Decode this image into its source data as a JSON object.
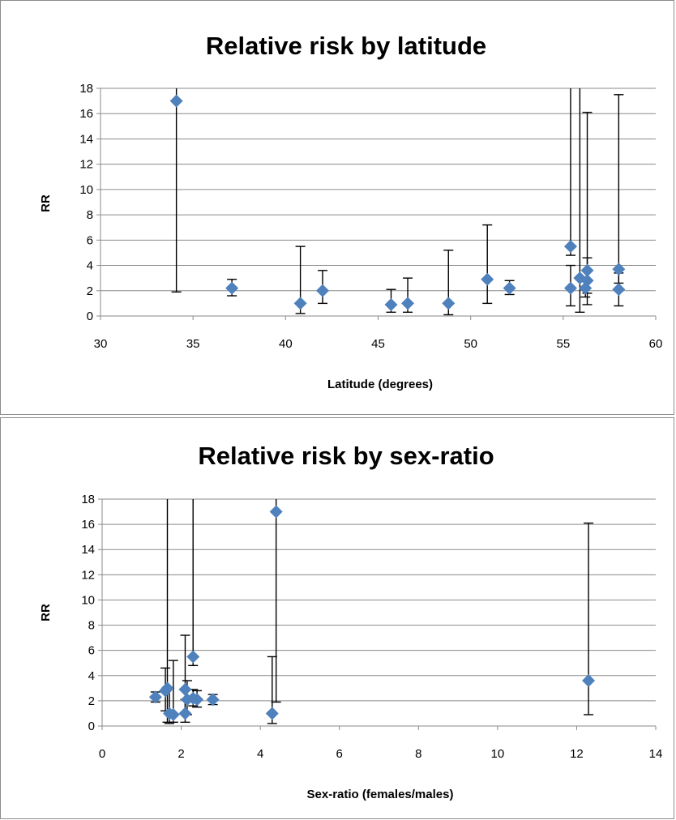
{
  "chart_data": [
    {
      "type": "scatter",
      "title": "Relative risk by latitude",
      "xlabel": "Latitude (degrees)",
      "ylabel": "RR",
      "xlim": [
        30,
        60
      ],
      "ylim": [
        0,
        18
      ],
      "xticks": [
        30,
        35,
        40,
        45,
        50,
        55,
        60
      ],
      "yticks": [
        0,
        2,
        4,
        6,
        8,
        10,
        12,
        14,
        16,
        18
      ],
      "grid": "horizontal",
      "marker_color": "#4f81bd",
      "points": [
        {
          "x": 34.1,
          "y": 17.0,
          "lo": 1.9,
          "hi": 18.0
        },
        {
          "x": 37.1,
          "y": 2.2,
          "lo": 1.6,
          "hi": 2.9
        },
        {
          "x": 40.8,
          "y": 1.0,
          "lo": 0.2,
          "hi": 5.5
        },
        {
          "x": 42.0,
          "y": 2.0,
          "lo": 1.0,
          "hi": 3.6
        },
        {
          "x": 45.7,
          "y": 0.9,
          "lo": 0.3,
          "hi": 2.1
        },
        {
          "x": 46.6,
          "y": 1.0,
          "lo": 0.3,
          "hi": 3.0
        },
        {
          "x": 48.8,
          "y": 1.0,
          "lo": 0.1,
          "hi": 5.2
        },
        {
          "x": 50.9,
          "y": 2.9,
          "lo": 1.0,
          "hi": 7.2
        },
        {
          "x": 52.1,
          "y": 2.2,
          "lo": 1.7,
          "hi": 2.8
        },
        {
          "x": 55.4,
          "y": 5.5,
          "lo": 4.8,
          "hi": 18.0
        },
        {
          "x": 55.4,
          "y": 2.2,
          "lo": 0.8,
          "hi": 4.0
        },
        {
          "x": 55.9,
          "y": 3.0,
          "lo": 0.3,
          "hi": 18.0
        },
        {
          "x": 56.2,
          "y": 2.2,
          "lo": 1.5,
          "hi": 3.0
        },
        {
          "x": 56.3,
          "y": 3.6,
          "lo": 1.8,
          "hi": 16.1
        },
        {
          "x": 56.3,
          "y": 2.8,
          "lo": 0.9,
          "hi": 4.6
        },
        {
          "x": 58.0,
          "y": 3.7,
          "lo": 2.6,
          "hi": 17.5
        },
        {
          "x": 58.0,
          "y": 2.1,
          "lo": 0.8,
          "hi": 3.4
        }
      ]
    },
    {
      "type": "scatter",
      "title": "Relative risk by sex-ratio",
      "xlabel": "Sex-ratio (females/males)",
      "ylabel": "RR",
      "xlim": [
        0,
        14
      ],
      "ylim": [
        0,
        18
      ],
      "xticks": [
        0,
        2,
        4,
        6,
        8,
        10,
        12,
        14
      ],
      "yticks": [
        0,
        2,
        4,
        6,
        8,
        10,
        12,
        14,
        16,
        18
      ],
      "grid": "horizontal",
      "marker_color": "#4f81bd",
      "points": [
        {
          "x": 1.35,
          "y": 2.3,
          "lo": 1.9,
          "hi": 2.7
        },
        {
          "x": 1.6,
          "y": 2.8,
          "lo": 1.2,
          "hi": 4.6
        },
        {
          "x": 1.65,
          "y": 3.0,
          "lo": 0.3,
          "hi": 18.0
        },
        {
          "x": 1.7,
          "y": 1.0,
          "lo": 0.2,
          "hi": 3.0
        },
        {
          "x": 1.8,
          "y": 0.9,
          "lo": 0.3,
          "hi": 5.2
        },
        {
          "x": 2.1,
          "y": 2.9,
          "lo": 1.0,
          "hi": 7.2
        },
        {
          "x": 2.1,
          "y": 1.0,
          "lo": 0.3,
          "hi": 2.1
        },
        {
          "x": 2.15,
          "y": 2.1,
          "lo": 0.9,
          "hi": 3.6
        },
        {
          "x": 2.3,
          "y": 5.5,
          "lo": 4.8,
          "hi": 18.0
        },
        {
          "x": 2.3,
          "y": 2.2,
          "lo": 1.6,
          "hi": 2.9
        },
        {
          "x": 2.4,
          "y": 2.1,
          "lo": 1.5,
          "hi": 2.8
        },
        {
          "x": 2.8,
          "y": 2.1,
          "lo": 1.7,
          "hi": 2.5
        },
        {
          "x": 4.3,
          "y": 1.0,
          "lo": 0.2,
          "hi": 5.5
        },
        {
          "x": 4.4,
          "y": 17.0,
          "lo": 1.9,
          "hi": 18.0
        },
        {
          "x": 12.3,
          "y": 3.6,
          "lo": 0.9,
          "hi": 16.1
        }
      ]
    }
  ]
}
